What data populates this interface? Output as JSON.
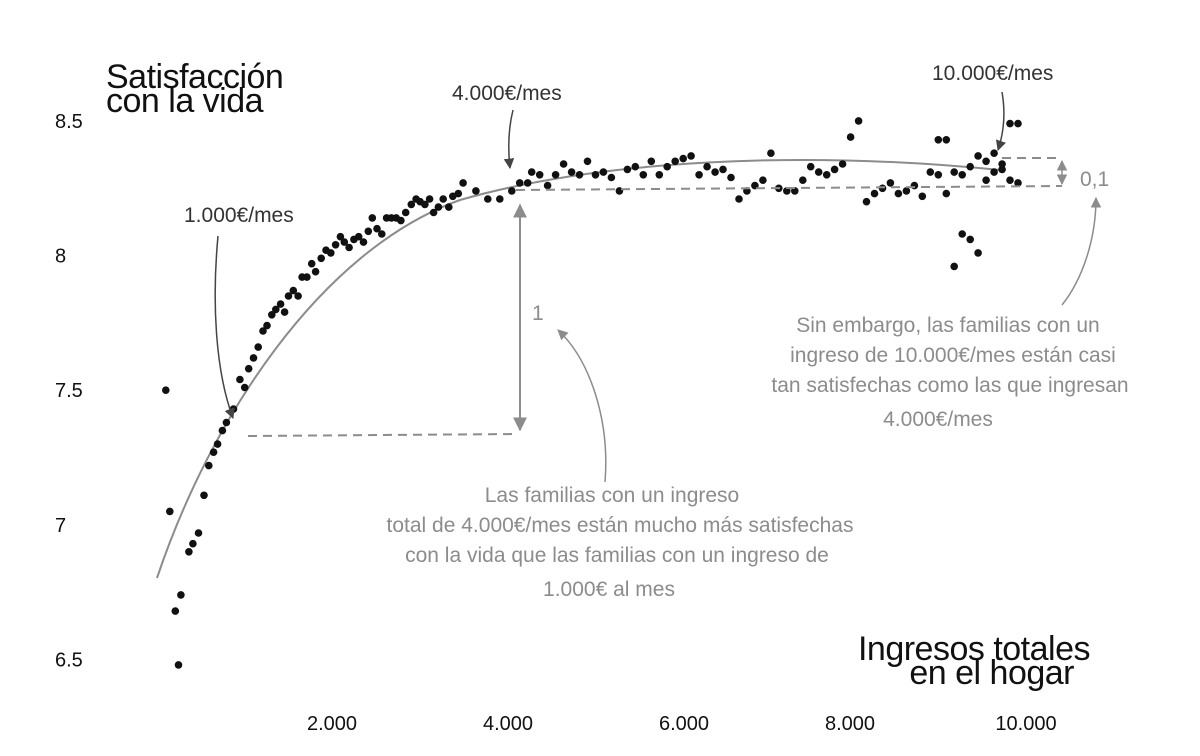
{
  "chart_data": {
    "type": "scatter",
    "ylabel": [
      "Satisfacción",
      "con la vida"
    ],
    "xlabel": [
      "Ingresos totales",
      "en el hogar"
    ],
    "xlim": [
      0,
      10800
    ],
    "ylim": [
      6.45,
      8.6
    ],
    "xticks": [
      {
        "value": 2000,
        "label": "2.000"
      },
      {
        "value": 4000,
        "label": "4.000"
      },
      {
        "value": 6000,
        "label": "6.000"
      },
      {
        "value": 8000,
        "label": "8.000"
      },
      {
        "value": 10000,
        "label": "10.000"
      }
    ],
    "yticks": [
      {
        "value": 8.5,
        "label": "8.5"
      },
      {
        "value": 8,
        "label": "8"
      },
      {
        "value": 7.5,
        "label": "7.5"
      },
      {
        "value": 7,
        "label": "7"
      },
      {
        "value": 6.5,
        "label": "6.5"
      }
    ],
    "points": [
      [
        110,
        7.5
      ],
      [
        160,
        7.05
      ],
      [
        230,
        6.68
      ],
      [
        270,
        6.48
      ],
      [
        300,
        6.74
      ],
      [
        400,
        6.9
      ],
      [
        450,
        6.93
      ],
      [
        520,
        6.97
      ],
      [
        590,
        7.11
      ],
      [
        650,
        7.22
      ],
      [
        710,
        7.27
      ],
      [
        760,
        7.3
      ],
      [
        820,
        7.35
      ],
      [
        870,
        7.38
      ],
      [
        960,
        7.43
      ],
      [
        1040,
        7.54
      ],
      [
        1100,
        7.51
      ],
      [
        1150,
        7.58
      ],
      [
        1210,
        7.62
      ],
      [
        1270,
        7.66
      ],
      [
        1330,
        7.72
      ],
      [
        1380,
        7.74
      ],
      [
        1440,
        7.78
      ],
      [
        1490,
        7.8
      ],
      [
        1550,
        7.82
      ],
      [
        1600,
        7.79
      ],
      [
        1650,
        7.85
      ],
      [
        1710,
        7.87
      ],
      [
        1770,
        7.85
      ],
      [
        1820,
        7.92
      ],
      [
        1880,
        7.92
      ],
      [
        1940,
        7.97
      ],
      [
        1990,
        7.94
      ],
      [
        2060,
        7.99
      ],
      [
        2120,
        8.02
      ],
      [
        2180,
        8.01
      ],
      [
        2240,
        8.04
      ],
      [
        2300,
        8.07
      ],
      [
        2350,
        8.05
      ],
      [
        2410,
        8.03
      ],
      [
        2470,
        8.06
      ],
      [
        2530,
        8.07
      ],
      [
        2590,
        8.05
      ],
      [
        2650,
        8.09
      ],
      [
        2700,
        8.14
      ],
      [
        2760,
        8.1
      ],
      [
        2820,
        8.08
      ],
      [
        2880,
        8.14
      ],
      [
        2940,
        8.14
      ],
      [
        3000,
        8.14
      ],
      [
        3060,
        8.13
      ],
      [
        3120,
        8.16
      ],
      [
        3190,
        8.19
      ],
      [
        3250,
        8.21
      ],
      [
        3300,
        8.2
      ],
      [
        3360,
        8.19
      ],
      [
        3420,
        8.21
      ],
      [
        3470,
        8.16
      ],
      [
        3530,
        8.18
      ],
      [
        3590,
        8.21
      ],
      [
        3660,
        8.18
      ],
      [
        3710,
        8.22
      ],
      [
        3780,
        8.23
      ],
      [
        3840,
        8.27
      ],
      [
        4000,
        8.24
      ],
      [
        4150,
        8.21
      ],
      [
        4300,
        8.21
      ],
      [
        4450,
        8.24
      ],
      [
        4550,
        8.27
      ],
      [
        4650,
        8.27
      ],
      [
        4700,
        8.31
      ],
      [
        4800,
        8.3
      ],
      [
        4900,
        8.26
      ],
      [
        5000,
        8.3
      ],
      [
        5100,
        8.34
      ],
      [
        5200,
        8.31
      ],
      [
        5300,
        8.3
      ],
      [
        5400,
        8.35
      ],
      [
        5500,
        8.3
      ],
      [
        5600,
        8.31
      ],
      [
        5700,
        8.29
      ],
      [
        5800,
        8.24
      ],
      [
        5900,
        8.32
      ],
      [
        6000,
        8.33
      ],
      [
        6100,
        8.3
      ],
      [
        6200,
        8.35
      ],
      [
        6300,
        8.3
      ],
      [
        6400,
        8.33
      ],
      [
        6500,
        8.35
      ],
      [
        6600,
        8.36
      ],
      [
        6700,
        8.37
      ],
      [
        6800,
        8.3
      ],
      [
        6900,
        8.33
      ],
      [
        7000,
        8.31
      ],
      [
        7100,
        8.32
      ],
      [
        7200,
        8.29
      ],
      [
        7300,
        8.21
      ],
      [
        7400,
        8.24
      ],
      [
        7500,
        8.26
      ],
      [
        7600,
        8.28
      ],
      [
        7700,
        8.38
      ],
      [
        7800,
        8.25
      ],
      [
        7900,
        8.24
      ],
      [
        8000,
        8.24
      ],
      [
        8100,
        8.28
      ],
      [
        8200,
        8.33
      ],
      [
        8300,
        8.31
      ],
      [
        8400,
        8.3
      ],
      [
        8500,
        8.32
      ],
      [
        8600,
        8.34
      ],
      [
        8700,
        8.44
      ],
      [
        8800,
        8.5
      ],
      [
        8900,
        8.2
      ],
      [
        9000,
        8.23
      ],
      [
        9100,
        8.25
      ],
      [
        9200,
        8.27
      ],
      [
        9300,
        8.23
      ],
      [
        9400,
        8.24
      ],
      [
        9500,
        8.26
      ],
      [
        9600,
        8.22
      ],
      [
        9700,
        8.31
      ],
      [
        9800,
        8.3
      ],
      [
        9900,
        8.23
      ],
      [
        10000,
        8.31
      ],
      [
        10100,
        8.3
      ],
      [
        10200,
        8.33
      ],
      [
        10300,
        8.37
      ],
      [
        10400,
        8.35
      ],
      [
        10500,
        8.31
      ],
      [
        10600,
        8.34
      ],
      [
        10700,
        8.28
      ],
      [
        10800,
        8.27
      ],
      [
        9800,
        8.43
      ],
      [
        9900,
        8.43
      ],
      [
        10000,
        7.96
      ],
      [
        10100,
        8.08
      ],
      [
        10200,
        8.06
      ],
      [
        10300,
        8.01
      ],
      [
        10400,
        8.28
      ],
      [
        10500,
        8.38
      ],
      [
        10600,
        8.32
      ],
      [
        10700,
        8.49
      ],
      [
        10800,
        8.49
      ]
    ],
    "annotations": {
      "a1000": "1.000€/mes",
      "a4000": "4.000€/mes",
      "a10000": "10.000€/mes",
      "diff_1": "1",
      "diff_01": "0,1",
      "note_left": [
        "Las familias con un ingreso",
        "total de 4.000€/mes están mucho más satisfechas",
        "con la vida que las familias con un ingreso de",
        "1.000€ al mes"
      ],
      "note_right": [
        "Sin embargo, las familias con un",
        "ingreso de 10.000€/mes están casi",
        "tan satisfechas como las que ingresan",
        "4.000€/mes"
      ]
    },
    "colors": {
      "points": "#111111",
      "curve": "#8c8c8c",
      "guides": "#8c8c8c",
      "notes": "#8c8c8c"
    },
    "grid": false,
    "legend": "none"
  }
}
